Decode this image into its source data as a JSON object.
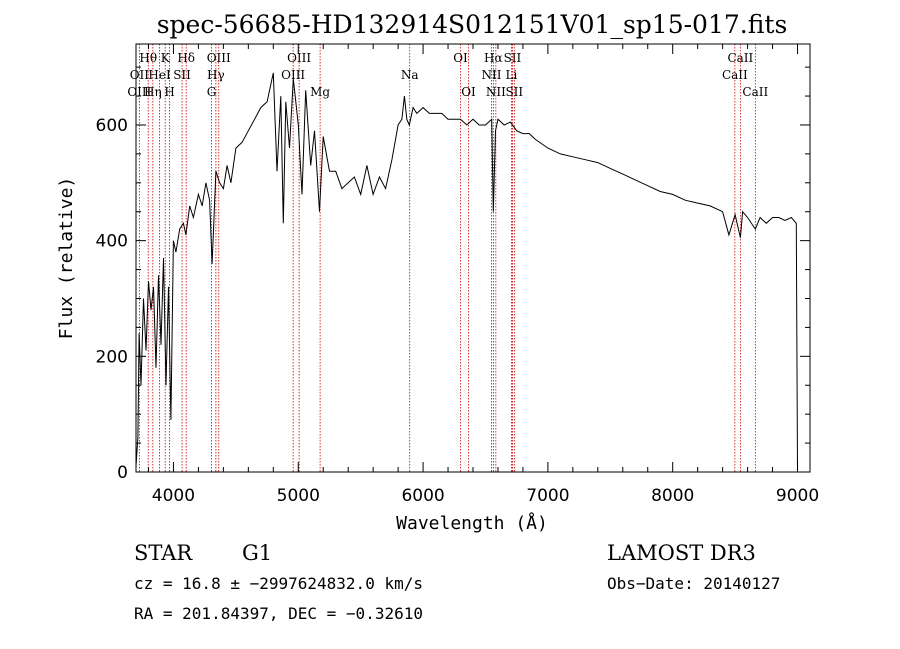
{
  "chart_data": {
    "type": "line",
    "title": "spec-56685-HD132914S012151V01_sp15-017.fits",
    "xlabel": "Wavelength (Å)",
    "ylabel": "Flux (relative)",
    "xlim": [
      3700,
      9100
    ],
    "ylim": [
      0,
      740
    ],
    "xticks": [
      4000,
      5000,
      6000,
      7000,
      8000,
      9000
    ],
    "yticks": [
      0,
      200,
      400,
      600
    ],
    "series": [
      {
        "name": "spectrum",
        "x": [
          3700,
          3715,
          3725,
          3740,
          3760,
          3780,
          3800,
          3820,
          3840,
          3860,
          3880,
          3900,
          3920,
          3940,
          3960,
          3980,
          4000,
          4020,
          4050,
          4080,
          4100,
          4130,
          4160,
          4200,
          4230,
          4260,
          4290,
          4310,
          4340,
          4370,
          4400,
          4430,
          4460,
          4500,
          4550,
          4600,
          4650,
          4700,
          4750,
          4800,
          4830,
          4860,
          4880,
          4900,
          4930,
          4960,
          5000,
          5030,
          5060,
          5100,
          5130,
          5170,
          5200,
          5250,
          5300,
          5350,
          5400,
          5450,
          5500,
          5550,
          5600,
          5650,
          5700,
          5750,
          5800,
          5830,
          5850,
          5870,
          5890,
          5920,
          5950,
          6000,
          6050,
          6100,
          6150,
          6200,
          6250,
          6300,
          6350,
          6400,
          6450,
          6500,
          6550,
          6563,
          6580,
          6600,
          6650,
          6700,
          6750,
          6800,
          6850,
          6900,
          7000,
          7100,
          7200,
          7300,
          7400,
          7500,
          7600,
          7700,
          7800,
          7900,
          8000,
          8100,
          8200,
          8300,
          8400,
          8450,
          8500,
          8542,
          8560,
          8600,
          8662,
          8700,
          8750,
          8800,
          8850,
          8900,
          8950,
          8990,
          9000
        ],
        "y": [
          10,
          60,
          240,
          150,
          300,
          210,
          330,
          280,
          320,
          180,
          340,
          220,
          370,
          150,
          320,
          90,
          400,
          380,
          420,
          430,
          410,
          460,
          440,
          480,
          460,
          500,
          470,
          360,
          520,
          500,
          490,
          530,
          500,
          560,
          570,
          590,
          610,
          630,
          640,
          690,
          520,
          650,
          430,
          640,
          560,
          680,
          600,
          480,
          660,
          530,
          590,
          450,
          580,
          520,
          520,
          490,
          500,
          510,
          480,
          530,
          480,
          510,
          490,
          540,
          600,
          610,
          650,
          610,
          600,
          630,
          620,
          630,
          620,
          620,
          620,
          610,
          610,
          610,
          600,
          610,
          600,
          600,
          610,
          450,
          590,
          610,
          600,
          605,
          590,
          585,
          585,
          575,
          560,
          550,
          545,
          540,
          535,
          525,
          515,
          505,
          495,
          485,
          480,
          470,
          465,
          460,
          450,
          410,
          445,
          405,
          450,
          440,
          420,
          440,
          430,
          440,
          440,
          435,
          440,
          430,
          0
        ]
      }
    ],
    "emission_lines": [
      {
        "label": "Hθ",
        "lambda": 3798,
        "row": 1
      },
      {
        "label": "OII",
        "lambda": 3727,
        "row": 2
      },
      {
        "label": "OIII",
        "lambda": 3727,
        "row": 3
      },
      {
        "label": "K",
        "lambda": 3934,
        "row": 1
      },
      {
        "label": "HeI",
        "lambda": 3889,
        "row": 2
      },
      {
        "label": "Hη",
        "lambda": 3835,
        "row": 3
      },
      {
        "label": "SII",
        "lambda": 4069,
        "row": 2
      },
      {
        "label": "H",
        "lambda": 3969,
        "row": 3
      },
      {
        "label": "Hδ",
        "lambda": 4102,
        "row": 1
      },
      {
        "label": "OIII",
        "lambda": 4363,
        "row": 1
      },
      {
        "label": "Hγ",
        "lambda": 4340,
        "row": 2
      },
      {
        "label": "G",
        "lambda": 4305,
        "row": 3
      },
      {
        "label": "OIII",
        "lambda": 5007,
        "row": 1
      },
      {
        "label": "OIII",
        "lambda": 4959,
        "row": 2
      },
      {
        "label": "Mg",
        "lambda": 5175,
        "row": 3
      },
      {
        "label": "Na",
        "lambda": 5893,
        "row": 2
      },
      {
        "label": "OI",
        "lambda": 6300,
        "row": 1
      },
      {
        "label": "OI",
        "lambda": 6364,
        "row": 3
      },
      {
        "label": "Hα",
        "lambda": 6563,
        "row": 1
      },
      {
        "label": "SII",
        "lambda": 6716,
        "row": 1
      },
      {
        "label": "NII",
        "lambda": 6548,
        "row": 2
      },
      {
        "label": "Li",
        "lambda": 6708,
        "row": 2
      },
      {
        "label": "NII",
        "lambda": 6583,
        "row": 3
      },
      {
        "label": "SII",
        "lambda": 6731,
        "row": 3
      },
      {
        "label": "CaII",
        "lambda": 8542,
        "row": 1
      },
      {
        "label": "CaII",
        "lambda": 8498,
        "row": 2
      },
      {
        "label": "CaII",
        "lambda": 8662,
        "row": 3
      }
    ]
  },
  "info": {
    "object_class": "STAR",
    "subclass": "G1",
    "survey": "LAMOST DR3",
    "cz": "cz = 16.8 ± −2997624832.0 km/s",
    "obs_date": "Obs−Date: 20140127",
    "coords": "RA = 201.84397, DEC =  −0.32610"
  },
  "colors": {
    "spectrum": "#000000",
    "emission_line": "#cc0000",
    "axes": "#000000"
  }
}
